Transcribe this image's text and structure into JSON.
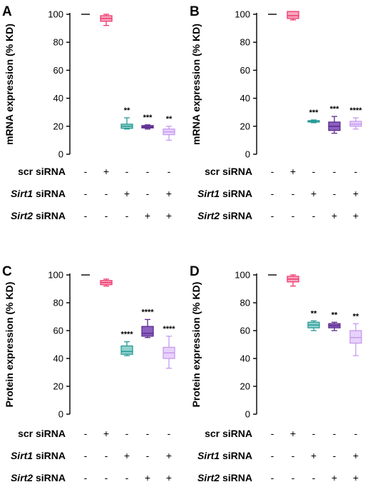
{
  "figure": {
    "ylabel_mrna": "mRNA expression (% KD)",
    "ylabel_protein": "Protein expression (% KD)",
    "conditions": [
      {
        "gene": "",
        "suffix": "scr siRNA",
        "signs": [
          "-",
          "+",
          "-",
          "-",
          "-"
        ]
      },
      {
        "gene": "Sirt1",
        "suffix": " siRNA",
        "signs": [
          "-",
          "-",
          "+",
          "-",
          "+"
        ]
      },
      {
        "gene": "Sirt2",
        "suffix": " siRNA",
        "signs": [
          "-",
          "-",
          "-",
          "+",
          "+"
        ]
      }
    ]
  },
  "chart_data": [
    {
      "panel": "A",
      "type": "box",
      "ylabel": "mRNA expression (% KD)",
      "ylim": [
        0,
        100
      ],
      "yticks": [
        0,
        20,
        40,
        60,
        80,
        100
      ],
      "groups": [
        {
          "median": 100,
          "line_only": true,
          "color": "#222222"
        },
        {
          "min": 92,
          "q1": 95,
          "median": 97,
          "q3": 99,
          "max": 100,
          "color": "#ee3a6e",
          "fill": "#f7a6be"
        },
        {
          "min": 18,
          "q1": 18.5,
          "median": 20,
          "q3": 21.5,
          "max": 26,
          "color": "#2a9a96",
          "fill": "#8fd1cd",
          "sig": "**"
        },
        {
          "min": 18,
          "q1": 18.8,
          "median": 19.5,
          "q3": 20.5,
          "max": 21,
          "color": "#5b2a8c",
          "fill": "#8a5fbf",
          "sig": "***"
        },
        {
          "min": 10,
          "q1": 14,
          "median": 16,
          "q3": 18,
          "max": 20,
          "color": "#c79af0",
          "fill": "#e8d2fb",
          "sig": "**"
        }
      ]
    },
    {
      "panel": "B",
      "type": "box",
      "ylabel": "mRNA expression (% KD)",
      "ylim": [
        0,
        100
      ],
      "yticks": [
        0,
        20,
        40,
        60,
        80,
        100
      ],
      "groups": [
        {
          "median": 100,
          "line_only": true,
          "color": "#222222"
        },
        {
          "min": 96,
          "q1": 97,
          "median": 99,
          "q3": 102,
          "max": 102,
          "color": "#ee3a6e",
          "fill": "#f7a6be"
        },
        {
          "min": 22.5,
          "q1": 23,
          "median": 23.5,
          "q3": 24,
          "max": 24.5,
          "color": "#2a9a96",
          "fill": "#8fd1cd",
          "sig": "***"
        },
        {
          "min": 15,
          "q1": 17,
          "median": 20,
          "q3": 23,
          "max": 27,
          "color": "#5b2a8c",
          "fill": "#8a5fbf",
          "sig": "***"
        },
        {
          "min": 18,
          "q1": 20,
          "median": 21.5,
          "q3": 23.5,
          "max": 26,
          "color": "#c79af0",
          "fill": "#e8d2fb",
          "sig": "****"
        }
      ]
    },
    {
      "panel": "C",
      "type": "box",
      "ylabel": "Protein expression (% KD)",
      "ylim": [
        0,
        100
      ],
      "yticks": [
        0,
        20,
        40,
        60,
        80,
        100
      ],
      "groups": [
        {
          "median": 100,
          "line_only": true,
          "color": "#222222"
        },
        {
          "min": 92,
          "q1": 93,
          "median": 94.5,
          "q3": 96,
          "max": 97,
          "color": "#ee3a6e",
          "fill": "#f7a6be"
        },
        {
          "min": 42,
          "q1": 43,
          "median": 45,
          "q3": 49,
          "max": 52,
          "color": "#2a9a96",
          "fill": "#8fd1cd",
          "sig": "****"
        },
        {
          "min": 55,
          "q1": 56,
          "median": 58,
          "q3": 63,
          "max": 68,
          "color": "#5b2a8c",
          "fill": "#8a5fbf",
          "sig": "****"
        },
        {
          "min": 33,
          "q1": 40,
          "median": 44,
          "q3": 48,
          "max": 56,
          "color": "#c79af0",
          "fill": "#e8d2fb",
          "sig": "****"
        }
      ]
    },
    {
      "panel": "D",
      "type": "box",
      "ylabel": "Protein expression (% KD)",
      "ylim": [
        0,
        100
      ],
      "yticks": [
        0,
        20,
        40,
        60,
        80,
        100
      ],
      "groups": [
        {
          "median": 100,
          "line_only": true,
          "color": "#222222"
        },
        {
          "min": 92,
          "q1": 95,
          "median": 97,
          "q3": 99,
          "max": 100,
          "color": "#ee3a6e",
          "fill": "#f7a6be"
        },
        {
          "min": 60,
          "q1": 62,
          "median": 64,
          "q3": 66,
          "max": 67,
          "color": "#2a9a96",
          "fill": "#8fd1cd",
          "sig": "**"
        },
        {
          "min": 60,
          "q1": 62,
          "median": 63.5,
          "q3": 65,
          "max": 66,
          "color": "#5b2a8c",
          "fill": "#8a5fbf",
          "sig": "**"
        },
        {
          "min": 42,
          "q1": 51,
          "median": 55,
          "q3": 60,
          "max": 65,
          "color": "#c79af0",
          "fill": "#e8d2fb",
          "sig": "**"
        }
      ]
    }
  ]
}
